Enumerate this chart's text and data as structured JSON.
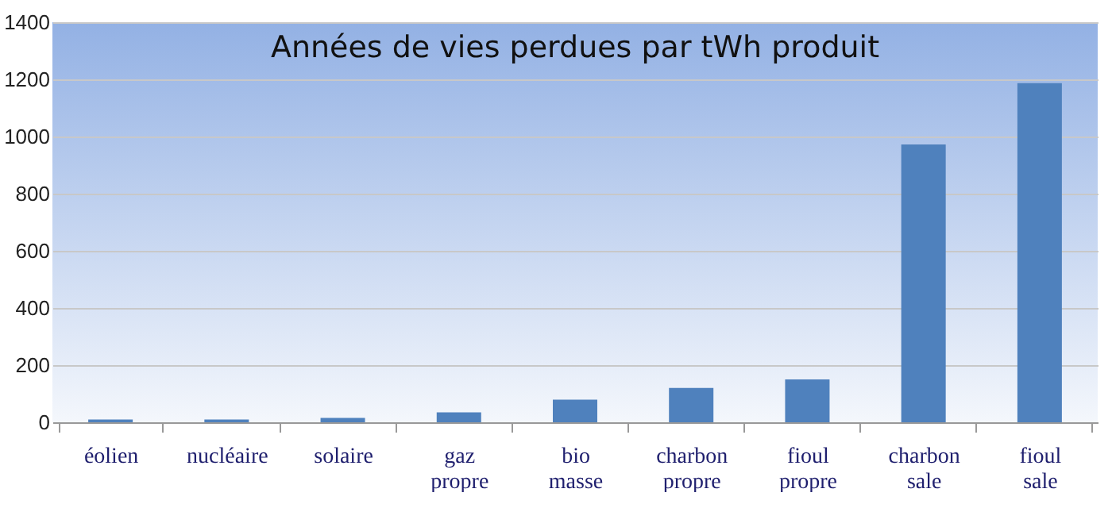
{
  "chart_data": {
    "type": "bar",
    "title": "Années de vies perdues par tWh produit",
    "categories": [
      "éolien",
      "nucléaire",
      "solaire",
      "gaz propre",
      "bio masse",
      "charbon propre",
      "fioul propre",
      "charbon sale",
      "fioul sale"
    ],
    "values": [
      10,
      10,
      15,
      35,
      79,
      120,
      150,
      972,
      1187
    ],
    "color": "#4f81bd",
    "ylim": [
      0,
      1400
    ],
    "yticks": [
      0,
      200,
      400,
      600,
      800,
      1000,
      1200,
      1400
    ],
    "grid": "y"
  }
}
